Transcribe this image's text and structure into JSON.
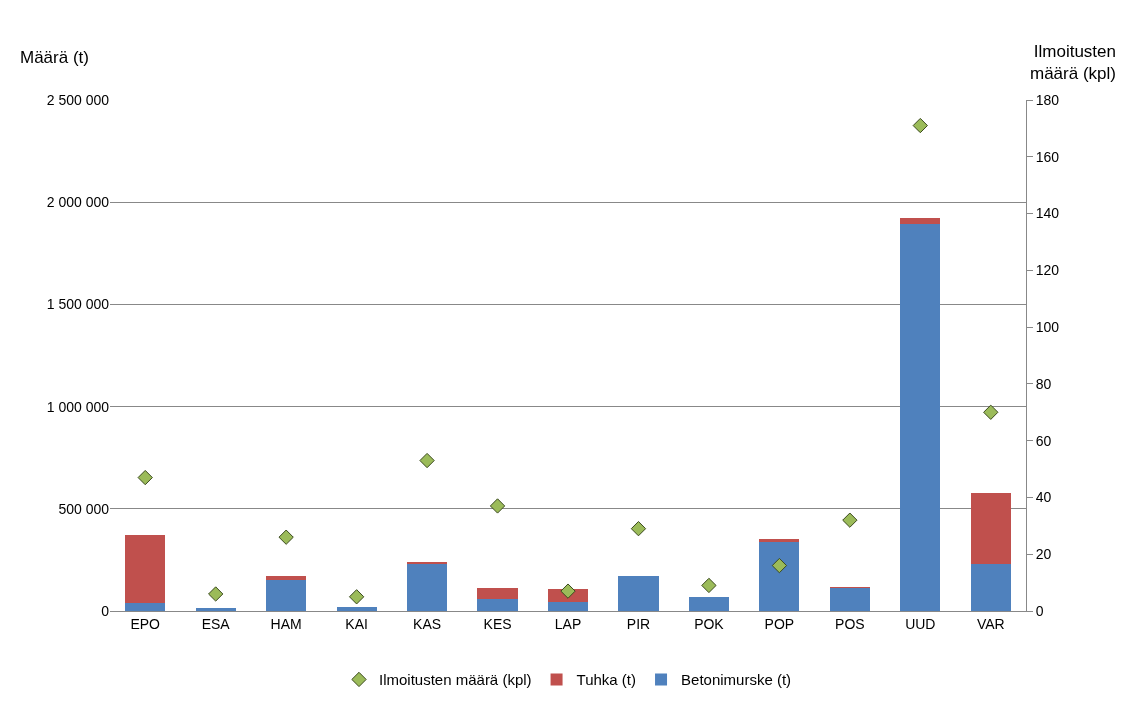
{
  "chart_data": {
    "type": "bar",
    "stacked": true,
    "ylabel": "Määrä (t)",
    "y2label": "Ilmoitusten\nmäärä (kpl)",
    "categories": [
      "EPO",
      "ESA",
      "HAM",
      "KAI",
      "KAS",
      "KES",
      "LAP",
      "PIR",
      "POK",
      "POP",
      "POS",
      "UUD",
      "VAR"
    ],
    "series": [
      {
        "name": "Betonimurske (t)",
        "color": "#4f81bd",
        "values": [
          40000,
          16000,
          151000,
          21000,
          233000,
          59000,
          46000,
          173000,
          70000,
          338000,
          113000,
          1894000,
          231000
        ]
      },
      {
        "name": "Tuhka (t)",
        "color": "#c0504d",
        "values": [
          330000,
          null,
          19000,
          null,
          5000,
          54000,
          60000,
          null,
          null,
          16000,
          3000,
          29000,
          345000
        ]
      },
      {
        "name": "Ilmoitusten määrä (kpl)",
        "type": "scatter",
        "axis": "y2",
        "marker": "diamond",
        "color": "#9bbb59",
        "values": [
          47,
          6,
          26,
          5,
          53,
          37,
          7,
          29,
          9,
          16,
          32,
          171,
          70
        ]
      }
    ],
    "ylim": [
      0,
      2500000
    ],
    "yticks": [
      {
        "value": 0,
        "label": "0"
      },
      {
        "value": 500000,
        "label": "500 000"
      },
      {
        "value": 1000000,
        "label": "1 000 000"
      },
      {
        "value": 1500000,
        "label": "1 500 000"
      },
      {
        "value": 2000000,
        "label": "2 000 000"
      },
      {
        "value": 2500000,
        "label": "2 500 000"
      }
    ],
    "y2lim": [
      0,
      180
    ],
    "y2ticks": [
      0,
      20,
      40,
      60,
      80,
      100,
      120,
      140,
      160,
      180
    ],
    "grid": "y",
    "legend": "bottom"
  }
}
